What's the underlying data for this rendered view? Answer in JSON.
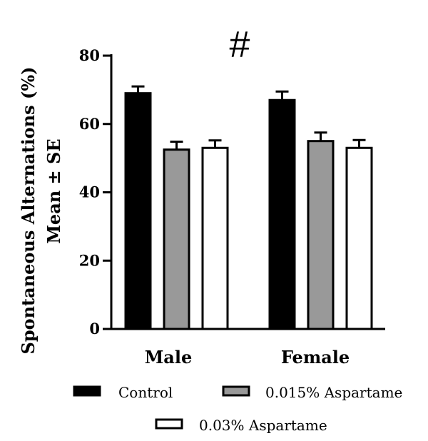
{
  "chart_data": {
    "type": "bar",
    "title": "",
    "annotation": "#",
    "ylabel_line1": "Spontaneous Alternations (%)",
    "ylabel_line2": "Mean ± SE",
    "xlabel": "",
    "ylim": [
      0,
      80
    ],
    "yticks": [
      0,
      20,
      40,
      60,
      80
    ],
    "ytick_labels": [
      "0",
      "20",
      "40",
      "60",
      "80"
    ],
    "grid": false,
    "legend_position": "bottom",
    "categories": [
      "Male",
      "Female"
    ],
    "series": [
      {
        "name": "Control",
        "fill": "#000000",
        "values": [
          69,
          67
        ],
        "errors": [
          2,
          2.5
        ]
      },
      {
        "name": "0.015% Aspartame",
        "fill": "#999999",
        "values": [
          52.5,
          55
        ],
        "errors": [
          2.3,
          2.5
        ]
      },
      {
        "name": "0.03% Aspartame",
        "fill": "#ffffff",
        "values": [
          53,
          53
        ],
        "errors": [
          2.2,
          2.3
        ]
      }
    ]
  }
}
